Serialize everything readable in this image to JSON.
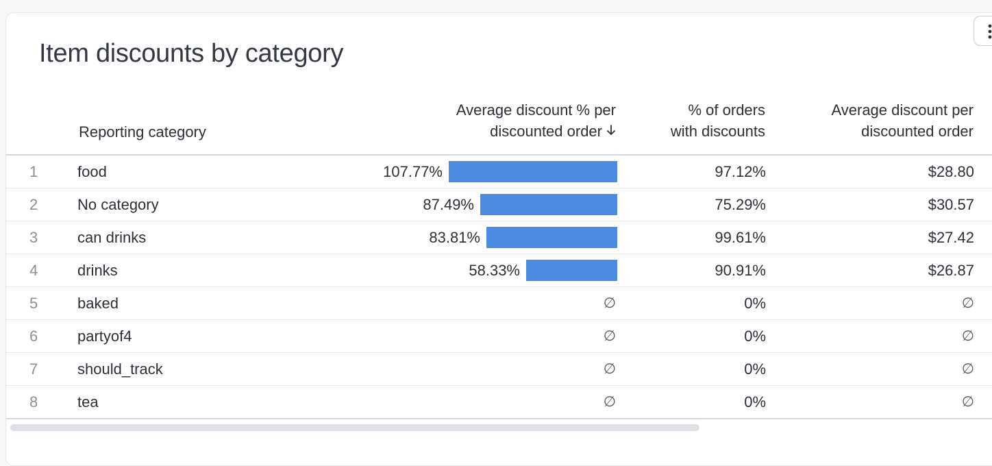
{
  "card": {
    "title": "Item discounts by category"
  },
  "table": {
    "headers": {
      "category": "Reporting category",
      "avg_pct_line1": "Average discount % per",
      "avg_pct_line2": "discounted order",
      "pct_orders_line1": "% of orders",
      "pct_orders_line2": "with discounts",
      "avg_disc_line1": "Average discount per",
      "avg_disc_line2": "discounted order"
    },
    "sort_icon": "arrow-down-icon",
    "null_symbol": "∅",
    "bar_color": "#4a8ae0",
    "bar_max_value": 107.77,
    "rows": [
      {
        "index": "1",
        "category": "food",
        "avg_pct": "107.77%",
        "avg_pct_value": 107.77,
        "pct_orders": "97.12%",
        "avg_disc": "$28.80"
      },
      {
        "index": "2",
        "category": "No category",
        "avg_pct": "87.49%",
        "avg_pct_value": 87.49,
        "pct_orders": "75.29%",
        "avg_disc": "$30.57"
      },
      {
        "index": "3",
        "category": "can drinks",
        "avg_pct": "83.81%",
        "avg_pct_value": 83.81,
        "pct_orders": "99.61%",
        "avg_disc": "$27.42"
      },
      {
        "index": "4",
        "category": "drinks",
        "avg_pct": "58.33%",
        "avg_pct_value": 58.33,
        "pct_orders": "90.91%",
        "avg_disc": "$26.87"
      },
      {
        "index": "5",
        "category": "baked",
        "avg_pct": null,
        "avg_pct_value": null,
        "pct_orders": "0%",
        "avg_disc": null
      },
      {
        "index": "6",
        "category": "partyof4",
        "avg_pct": null,
        "avg_pct_value": null,
        "pct_orders": "0%",
        "avg_disc": null
      },
      {
        "index": "7",
        "category": "should_track",
        "avg_pct": null,
        "avg_pct_value": null,
        "pct_orders": "0%",
        "avg_disc": null
      },
      {
        "index": "8",
        "category": "tea",
        "avg_pct": null,
        "avg_pct_value": null,
        "pct_orders": "0%",
        "avg_disc": null
      }
    ]
  },
  "menu_button": {
    "icon": "vertical-dots-icon"
  }
}
